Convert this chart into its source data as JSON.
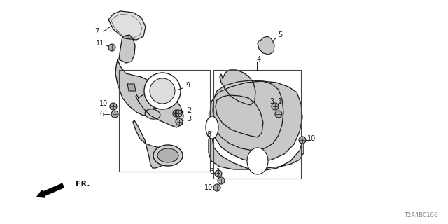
{
  "bg_color": "#ffffff",
  "diagram_code": "T2A4B0106",
  "line_color": "#1a1a1a",
  "gray_fill": "#c8c8c8",
  "light_gray": "#e0e0e0",
  "figsize": [
    6.4,
    3.2
  ],
  "dpi": 100
}
